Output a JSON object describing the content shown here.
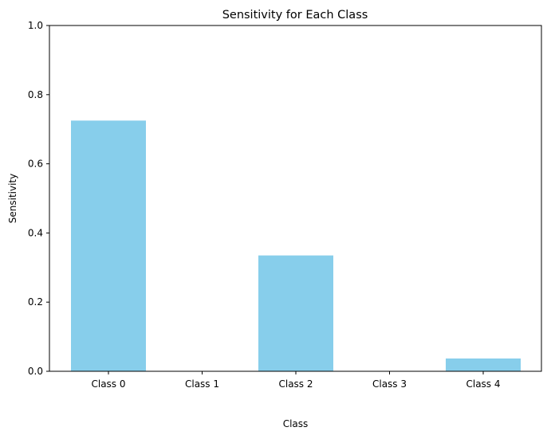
{
  "chart_data": {
    "type": "bar",
    "title": "Sensitivity for Each Class",
    "xlabel": "Class",
    "ylabel": "Sensitivity",
    "categories": [
      "Class 0",
      "Class 1",
      "Class 2",
      "Class 3",
      "Class 4"
    ],
    "values": [
      0.725,
      0.0,
      0.335,
      0.0,
      0.037
    ],
    "ylim": [
      0,
      1
    ],
    "yticks": [
      0.0,
      0.2,
      0.4,
      0.6,
      0.8,
      1.0
    ],
    "ytick_labels": [
      "0.0",
      "0.2",
      "0.4",
      "0.6",
      "0.8",
      "1.0"
    ],
    "bar_color": "#87ceeb",
    "grid": false,
    "legend": "none"
  }
}
